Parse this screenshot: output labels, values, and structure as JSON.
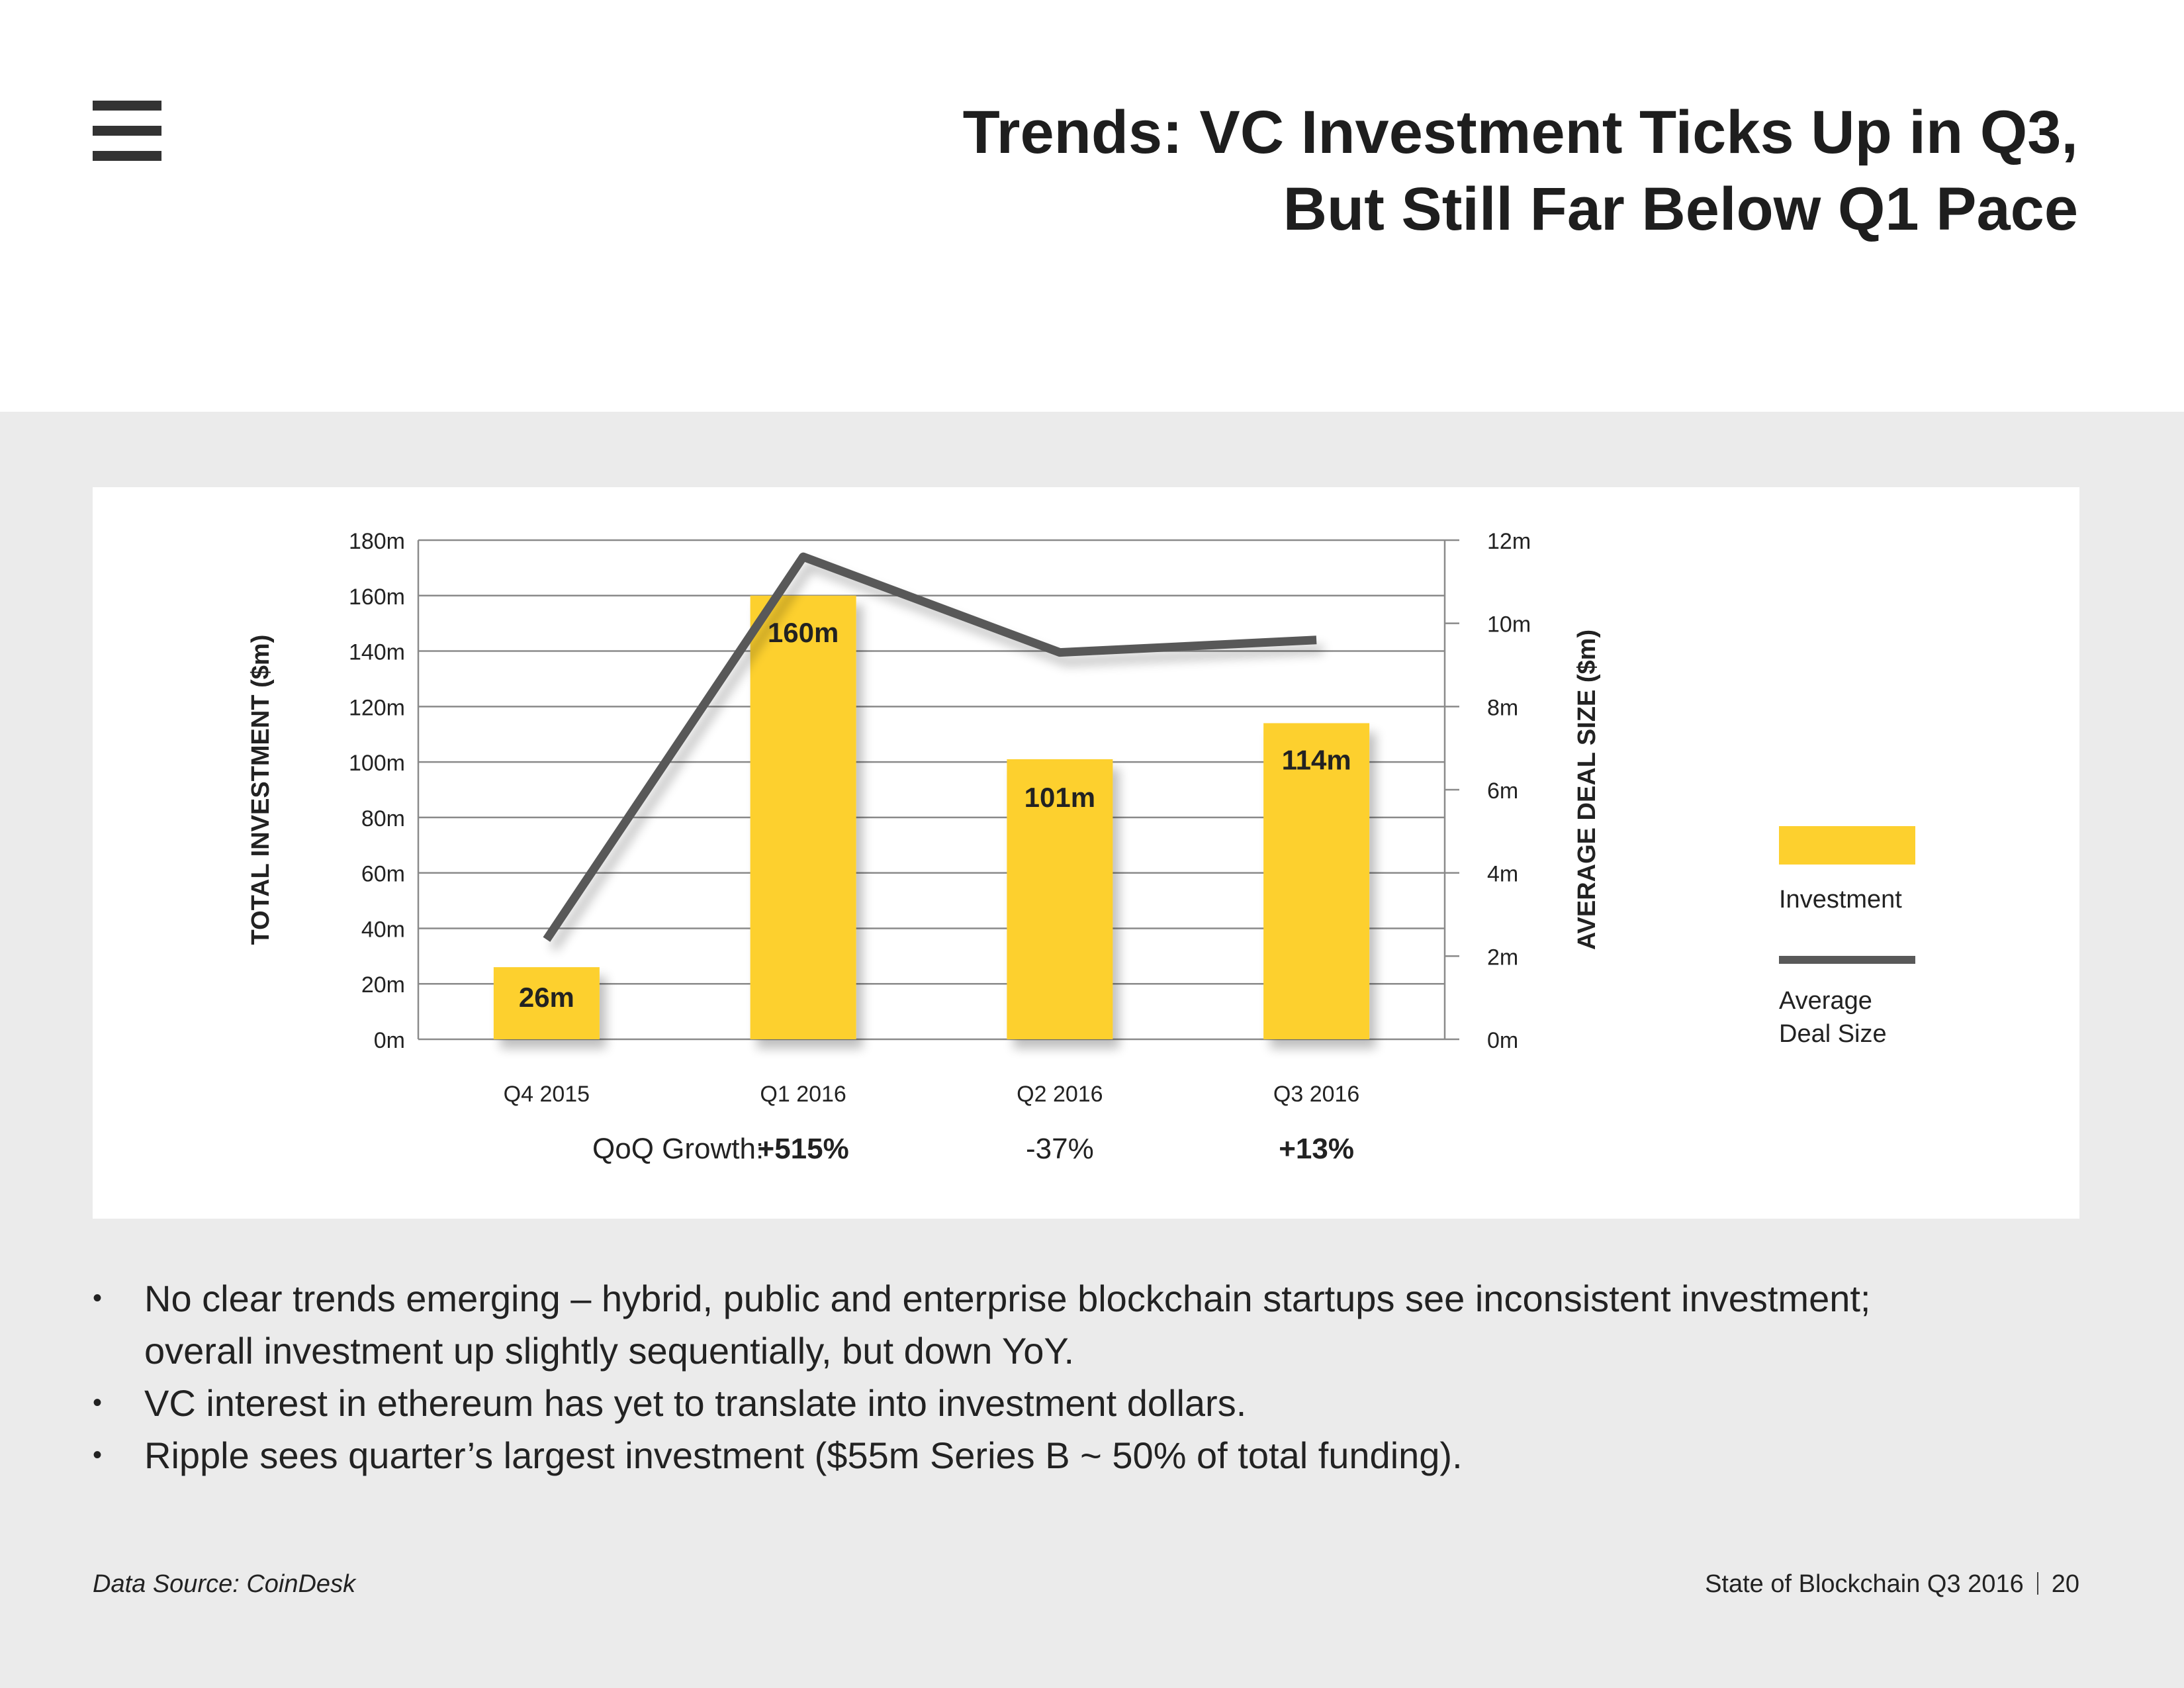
{
  "page": {
    "title_line1": "Trends: VC Investment Ticks Up in Q3,",
    "title_line2": "But Still Far Below Q1 Pace",
    "menu_icon": "hamburger-menu-icon",
    "footer_doc": "State of Blockchain Q3 2016",
    "footer_page": "20",
    "source": "Data Source: CoinDesk"
  },
  "colors": {
    "bar": "#FDD02E",
    "line": "#595959",
    "grid": "#8a8a8a",
    "text": "#222222",
    "background_grey": "#EBEBEB"
  },
  "chart_data": {
    "type": "bar",
    "categories": [
      "Q4 2015",
      "Q1 2016",
      "Q2 2016",
      "Q3 2016"
    ],
    "series": [
      {
        "name": "Investment",
        "type": "bar",
        "axis": "left",
        "values": [
          26,
          160,
          101,
          114
        ],
        "labels": [
          "26m",
          "160m",
          "101m",
          "114m"
        ]
      },
      {
        "name": "Average Deal Size",
        "type": "line",
        "axis": "right",
        "values": [
          2.4,
          11.6,
          9.3,
          9.6
        ]
      }
    ],
    "left_axis": {
      "label": "TOTAL INVESTMENT ($m)",
      "min": 0,
      "max": 180,
      "step": 20,
      "ticks": [
        "0m",
        "20m",
        "40m",
        "60m",
        "80m",
        "100m",
        "120m",
        "140m",
        "160m",
        "180m"
      ]
    },
    "right_axis": {
      "label": "AVERAGE DEAL SIZE ($m)",
      "min": 0,
      "max": 12,
      "step": 2,
      "ticks": [
        "0m",
        "2m",
        "4m",
        "6m",
        "8m",
        "10m",
        "12m"
      ]
    },
    "growth_label": "QoQ Growth:",
    "growth": [
      "+515%",
      "-37%",
      "+13%"
    ],
    "legend": {
      "position": "right",
      "items": [
        "Investment",
        "Average",
        "Deal Size"
      ]
    },
    "grid": true
  },
  "bullets": [
    {
      "line1": "No clear trends emerging – hybrid, public and enterprise blockchain startups see inconsistent investment;",
      "line2": "overall investment up slightly sequentially, but down YoY."
    },
    {
      "line1": "VC interest in ethereum has yet to translate into investment dollars."
    },
    {
      "line1": "Ripple sees quarter’s largest investment ($55m Series B ~ 50% of total funding)."
    }
  ],
  "bullet_symbol": "•"
}
